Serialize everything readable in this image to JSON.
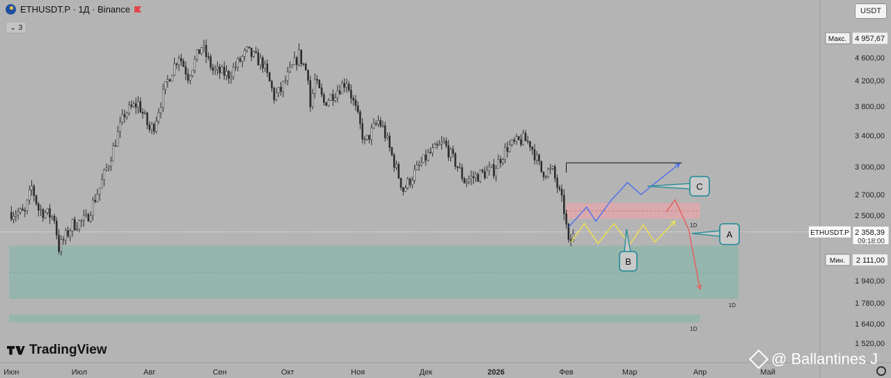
{
  "header": {
    "title": "ETHUSDT.P · 1Д · Binance",
    "indicator_count": "3"
  },
  "currency": "USDT",
  "logo": "TradingView",
  "watermark": "@ Ballantines J",
  "colors": {
    "bg": "#b4b4b4",
    "zone": "#8fb5ac",
    "supply": "#dfa8ac",
    "candle": "#2b2b2b",
    "blue": "#4a6cf0",
    "yellow": "#f2e24a",
    "red": "#e85a5a",
    "teal": "#2f8f9a"
  },
  "chart_data": {
    "type": "candlestick",
    "title": "ETHUSDT.P · 1Д · Binance",
    "ylim": [
      1450,
      5050
    ],
    "y_ticks": [
      {
        "v": 4600,
        "label": "4 600,00"
      },
      {
        "v": 4200,
        "label": "4 200,00"
      },
      {
        "v": 3800,
        "label": "3 800,00"
      },
      {
        "v": 3400,
        "label": "3 400,00"
      },
      {
        "v": 3000,
        "label": "3 000,00"
      },
      {
        "v": 2700,
        "label": "2 700,00"
      },
      {
        "v": 2500,
        "label": "2 500,00"
      },
      {
        "v": 1940,
        "label": "1 940,00"
      },
      {
        "v": 1780,
        "label": "1 780,00"
      },
      {
        "v": 1640,
        "label": "1 640,00"
      },
      {
        "v": 1520,
        "label": "1 520,00"
      }
    ],
    "x_ticks": [
      {
        "d": "2025-06-01",
        "label": "Июн"
      },
      {
        "d": "2025-07-01",
        "label": "Июл"
      },
      {
        "d": "2025-08-01",
        "label": "Авг"
      },
      {
        "d": "2025-09-01",
        "label": "Сен"
      },
      {
        "d": "2025-10-01",
        "label": "Окт"
      },
      {
        "d": "2025-11-01",
        "label": "Ноя"
      },
      {
        "d": "2025-12-01",
        "label": "Дек"
      },
      {
        "d": "2026-01-01",
        "label": "2026",
        "bold": true
      },
      {
        "d": "2026-02-01",
        "label": "Фев"
      },
      {
        "d": "2026-03-01",
        "label": "Мар"
      },
      {
        "d": "2026-04-01",
        "label": "Апр"
      },
      {
        "d": "2026-05-01",
        "label": "Май"
      }
    ],
    "price_path": [
      [
        "2025-06-01",
        2530
      ],
      [
        "2025-06-07",
        2520
      ],
      [
        "2025-06-10",
        2780
      ],
      [
        "2025-06-13",
        2560
      ],
      [
        "2025-06-20",
        2480
      ],
      [
        "2025-06-22",
        2220
      ],
      [
        "2025-06-28",
        2420
      ],
      [
        "2025-07-04",
        2460
      ],
      [
        "2025-07-10",
        2770
      ],
      [
        "2025-07-14",
        3050
      ],
      [
        "2025-07-21",
        3700
      ],
      [
        "2025-07-27",
        3850
      ],
      [
        "2025-08-01",
        3480
      ],
      [
        "2025-08-03",
        3540
      ],
      [
        "2025-08-09",
        4200
      ],
      [
        "2025-08-14",
        4650
      ],
      [
        "2025-08-18",
        4280
      ],
      [
        "2025-08-24",
        4800
      ],
      [
        "2025-08-29",
        4380
      ],
      [
        "2025-09-05",
        4300
      ],
      [
        "2025-09-13",
        4700
      ],
      [
        "2025-09-20",
        4500
      ],
      [
        "2025-09-25",
        3950
      ],
      [
        "2025-09-28",
        4050
      ],
      [
        "2025-10-06",
        4650
      ],
      [
        "2025-10-10",
        4300
      ],
      [
        "2025-10-11",
        3800
      ],
      [
        "2025-10-13",
        4200
      ],
      [
        "2025-10-17",
        3850
      ],
      [
        "2025-10-27",
        4200
      ],
      [
        "2025-11-04",
        3300
      ],
      [
        "2025-11-10",
        3600
      ],
      [
        "2025-11-12",
        3500
      ],
      [
        "2025-11-17",
        3050
      ],
      [
        "2025-11-21",
        2750
      ],
      [
        "2025-12-02",
        3150
      ],
      [
        "2025-12-09",
        3300
      ],
      [
        "2025-12-13",
        3100
      ],
      [
        "2025-12-18",
        2850
      ],
      [
        "2025-12-31",
        2970
      ],
      [
        "2026-01-06",
        3250
      ],
      [
        "2026-01-13",
        3350
      ],
      [
        "2026-01-16",
        3300
      ],
      [
        "2026-01-21",
        2950
      ],
      [
        "2026-01-26",
        2950
      ],
      [
        "2026-01-31",
        2550
      ],
      [
        "2026-02-02",
        2250
      ],
      [
        "2026-02-04",
        2320
      ]
    ],
    "current_price": {
      "label": "ETHUSDT.P",
      "value": "2 358,39",
      "countdown": "09:18:00",
      "v": 2358.39
    },
    "max_marker": {
      "label": "Макс.",
      "value": "4 957,67",
      "v": 4957.67
    },
    "min_marker": {
      "label": "Мин.",
      "value": "2 111,00",
      "v": 2111
    },
    "zones": [
      {
        "name": "demand",
        "from": "2025-05-31",
        "to": "2026-04-18",
        "top": 2240,
        "bottom": 1810,
        "label": "1D"
      },
      {
        "name": "lower",
        "from": "2025-05-31",
        "to": "2026-04-01",
        "top": 1700,
        "bottom": 1650,
        "label": "1D"
      },
      {
        "name": "supply",
        "from": "2026-02-01",
        "to": "2026-04-01",
        "top": 2620,
        "bottom": 2470,
        "label": "1D"
      }
    ],
    "scenarios": [
      {
        "name": "blue",
        "label": "C",
        "points": [
          [
            "2026-02-02",
            2400
          ],
          [
            "2026-02-10",
            2580
          ],
          [
            "2026-02-14",
            2450
          ],
          [
            "2026-02-21",
            2650
          ],
          [
            "2026-02-28",
            2830
          ],
          [
            "2026-03-06",
            2700
          ],
          [
            "2026-03-11",
            2800
          ],
          [
            "2026-03-23",
            3040
          ]
        ]
      },
      {
        "name": "yellow",
        "label": "B",
        "points": [
          [
            "2026-02-03",
            2270
          ],
          [
            "2026-02-09",
            2430
          ],
          [
            "2026-02-15",
            2260
          ],
          [
            "2026-02-22",
            2430
          ],
          [
            "2026-03-01",
            2250
          ],
          [
            "2026-03-07",
            2420
          ],
          [
            "2026-03-12",
            2270
          ],
          [
            "2026-03-21",
            2450
          ]
        ]
      },
      {
        "name": "red",
        "label": "A",
        "points": [
          [
            "2026-03-17",
            2530
          ],
          [
            "2026-03-21",
            2650
          ],
          [
            "2026-03-27",
            2380
          ],
          [
            "2026-04-01",
            1880
          ]
        ]
      }
    ],
    "resistance_line": {
      "from": "2026-02-01",
      "to": "2026-03-24",
      "v": 3050
    }
  }
}
